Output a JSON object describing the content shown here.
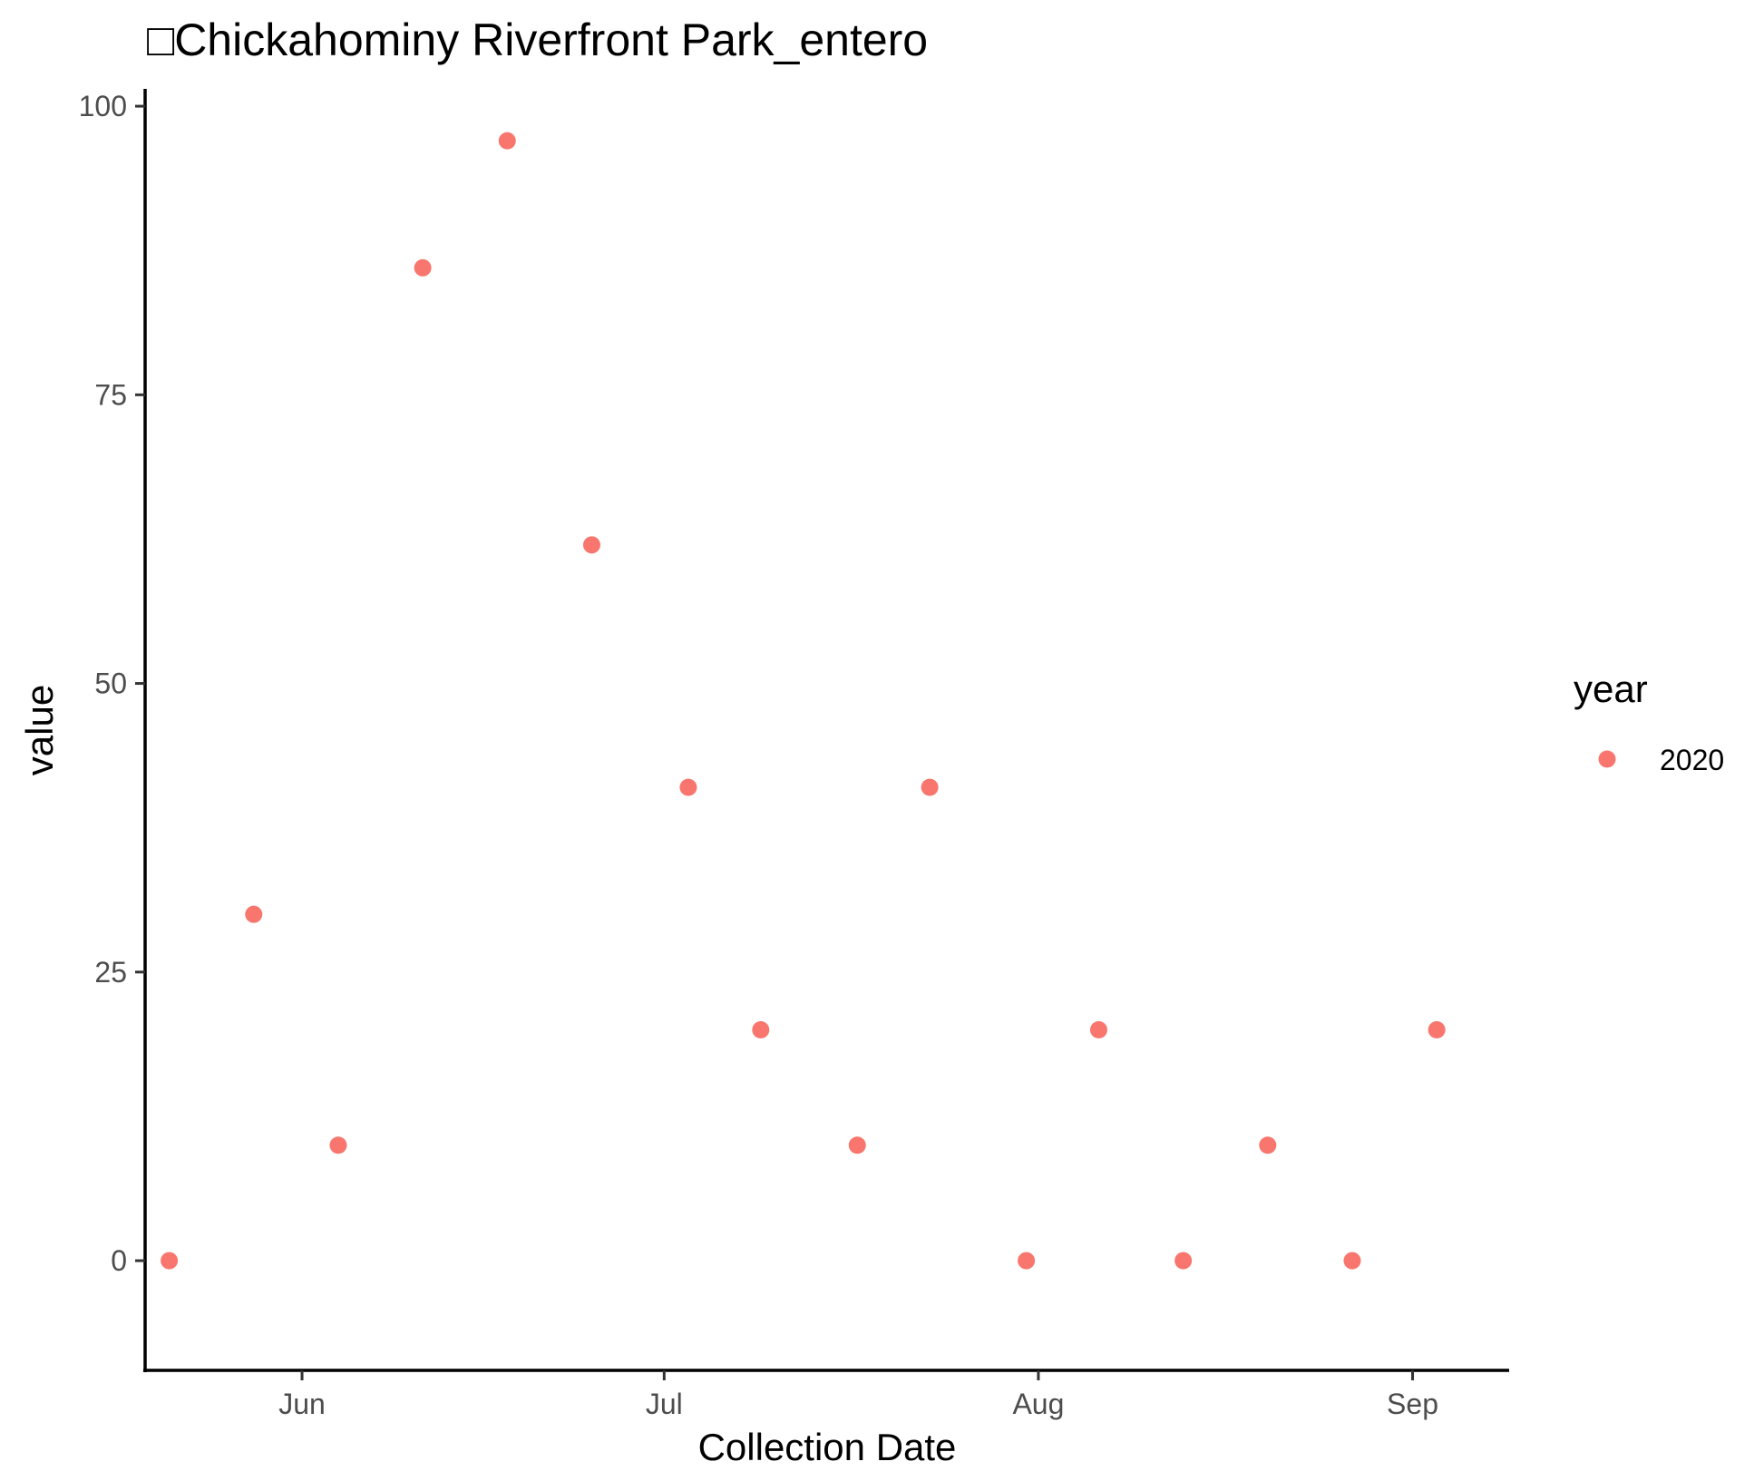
{
  "chart_data": {
    "type": "scatter",
    "title": "□Chickahominy Riverfront Park_entero",
    "xlabel": "Collection Date",
    "ylabel": "value",
    "x_is_date": true,
    "xlim": [
      "2020-05-19",
      "2020-09-09"
    ],
    "ylim": [
      -9.5,
      101.5
    ],
    "x_ticks": [
      {
        "label": "Jun",
        "date": "2020-06-01"
      },
      {
        "label": "Jul",
        "date": "2020-07-01"
      },
      {
        "label": "Aug",
        "date": "2020-08-01"
      },
      {
        "label": "Sep",
        "date": "2020-09-01"
      }
    ],
    "y_ticks": [
      0,
      25,
      50,
      75,
      100
    ],
    "grid": false,
    "legend": {
      "title": "year",
      "position": "right",
      "entries": [
        {
          "label": "2020",
          "color": "#F8766D"
        }
      ]
    },
    "series": [
      {
        "name": "2020",
        "color": "#F8766D",
        "points": [
          {
            "x": "2020-05-21",
            "y": 0
          },
          {
            "x": "2020-05-28",
            "y": 30
          },
          {
            "x": "2020-06-04",
            "y": 10
          },
          {
            "x": "2020-06-11",
            "y": 86
          },
          {
            "x": "2020-06-18",
            "y": 97
          },
          {
            "x": "2020-06-25",
            "y": 62
          },
          {
            "x": "2020-07-03",
            "y": 41
          },
          {
            "x": "2020-07-09",
            "y": 20
          },
          {
            "x": "2020-07-17",
            "y": 10
          },
          {
            "x": "2020-07-23",
            "y": 41
          },
          {
            "x": "2020-07-31",
            "y": 0
          },
          {
            "x": "2020-08-06",
            "y": 20
          },
          {
            "x": "2020-08-13",
            "y": 0
          },
          {
            "x": "2020-08-20",
            "y": 10
          },
          {
            "x": "2020-08-27",
            "y": 0
          },
          {
            "x": "2020-09-03",
            "y": 20
          }
        ]
      }
    ]
  }
}
